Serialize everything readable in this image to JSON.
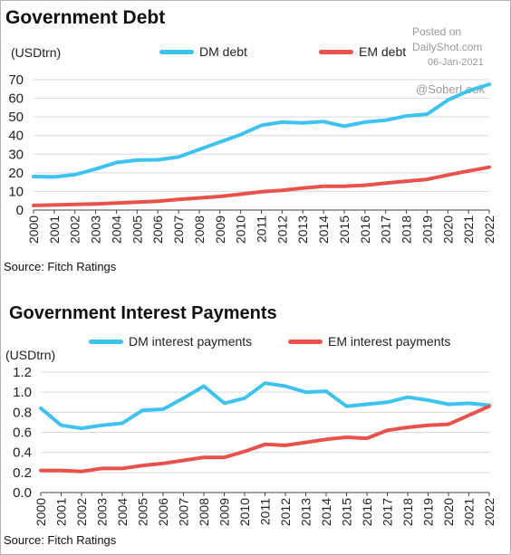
{
  "watermark": {
    "posted_on": "Posted on",
    "site": "DailyShot.com",
    "date": "06-Jan-2021",
    "handle": "@SoberLook"
  },
  "colors": {
    "dm": "#3cc3f0",
    "em": "#e8524a"
  },
  "chart_data": [
    {
      "type": "line",
      "title": "Government Debt",
      "unit_label": "(USDtrn)",
      "source": "Source: Fitch Ratings",
      "x": [
        "2000",
        "2001",
        "2002",
        "2003",
        "2004",
        "2005",
        "2006",
        "2007",
        "2008",
        "2009",
        "2010",
        "2011",
        "2012",
        "2013",
        "2014",
        "2015",
        "2016",
        "2017",
        "2018",
        "2019",
        "2020",
        "2021",
        "2022"
      ],
      "ylim": [
        0,
        70
      ],
      "yticks": [
        0,
        10,
        20,
        30,
        40,
        50,
        60,
        70
      ],
      "ytick_labels": [
        "0",
        "10",
        "20",
        "30",
        "40",
        "50",
        "60",
        "70"
      ],
      "grid": true,
      "legend_position": "top",
      "series": [
        {
          "name": "DM debt",
          "color": "#3cc3f0",
          "values": [
            18,
            17.8,
            19,
            22,
            25.5,
            26.8,
            27,
            28.5,
            32.5,
            36.5,
            40.5,
            45.5,
            47.2,
            46.8,
            47.5,
            45,
            47.2,
            48.2,
            50.5,
            51.5,
            59,
            64,
            67.5
          ]
        },
        {
          "name": "EM debt",
          "color": "#e8524a",
          "values": [
            2.5,
            2.7,
            3.0,
            3.3,
            3.8,
            4.3,
            4.7,
            5.7,
            6.5,
            7.3,
            8.5,
            9.8,
            10.6,
            11.8,
            12.8,
            12.8,
            13.3,
            14.5,
            15.5,
            16.5,
            18.8,
            21,
            23
          ]
        }
      ]
    },
    {
      "type": "line",
      "title": "Government Interest Payments",
      "unit_label": "(USDtrn)",
      "source": "Source: Fitch Ratings",
      "x": [
        "2000",
        "2001",
        "2002",
        "2003",
        "2004",
        "2005",
        "2006",
        "2007",
        "2008",
        "2009",
        "2010",
        "2011",
        "2012",
        "2013",
        "2014",
        "2015",
        "2016",
        "2017",
        "2018",
        "2019",
        "2020",
        "2021",
        "2022"
      ],
      "ylim": [
        0,
        1.2
      ],
      "yticks": [
        0,
        0.2,
        0.4,
        0.6,
        0.8,
        1.0,
        1.2
      ],
      "ytick_labels": [
        "0.0",
        "0.2",
        "0.4",
        "0.6",
        "0.8",
        "1.0",
        "1.2"
      ],
      "grid": true,
      "legend_position": "top",
      "series": [
        {
          "name": "DM interest payments",
          "color": "#3cc3f0",
          "values": [
            0.84,
            0.67,
            0.64,
            0.67,
            0.69,
            0.82,
            0.83,
            0.94,
            1.06,
            0.89,
            0.94,
            1.09,
            1.06,
            1.0,
            1.01,
            0.86,
            0.88,
            0.9,
            0.95,
            0.92,
            0.88,
            0.89,
            0.87
          ]
        },
        {
          "name": "EM interest payments",
          "color": "#e8524a",
          "values": [
            0.22,
            0.22,
            0.21,
            0.24,
            0.24,
            0.27,
            0.29,
            0.32,
            0.35,
            0.35,
            0.41,
            0.48,
            0.47,
            0.5,
            0.53,
            0.55,
            0.54,
            0.62,
            0.65,
            0.67,
            0.68,
            0.77,
            0.86
          ]
        }
      ]
    }
  ]
}
